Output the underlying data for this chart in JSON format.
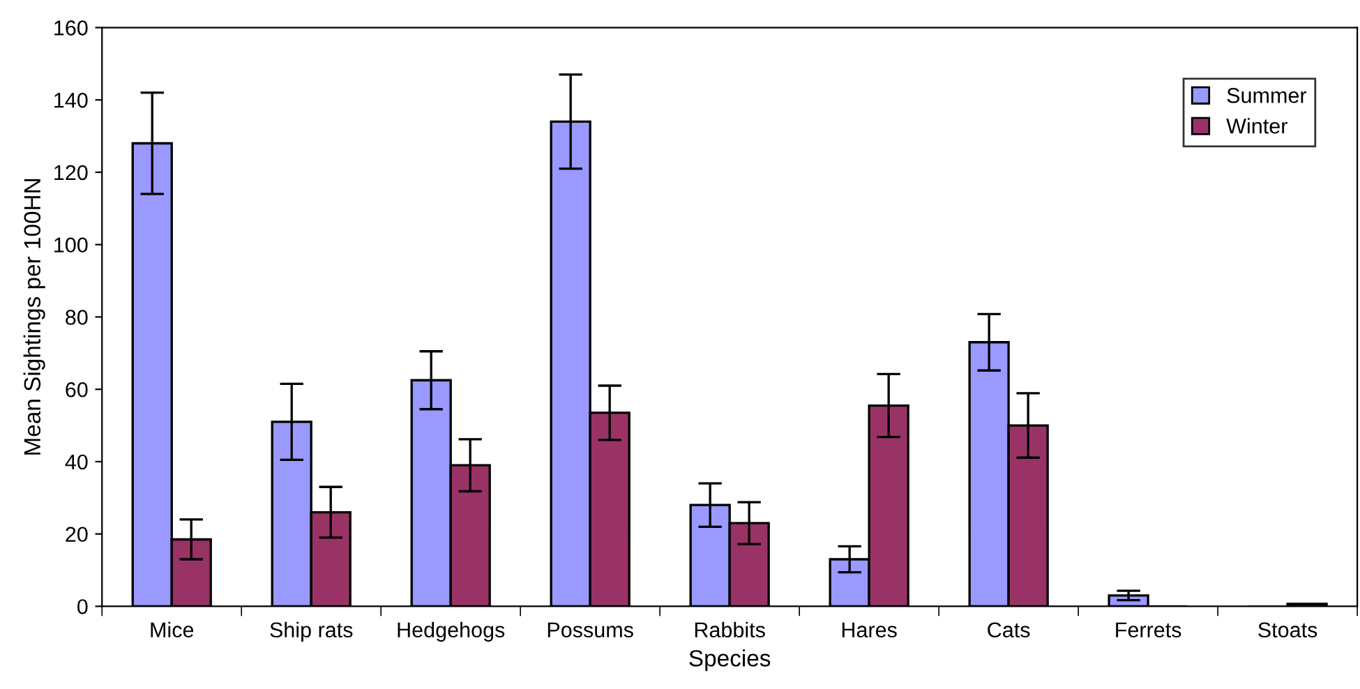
{
  "chart_data": {
    "type": "bar",
    "xlabel": "Species",
    "ylabel": "Mean Sightings per 100HN",
    "categories": [
      "Mice",
      "Ship rats",
      "Hedgehogs",
      "Possums",
      "Rabbits",
      "Hares",
      "Cats",
      "Ferrets",
      "Stoats"
    ],
    "series": [
      {
        "name": "Summer",
        "color": "#9999ff",
        "values": [
          128,
          51,
          62.5,
          134,
          28,
          13,
          73,
          3,
          0
        ],
        "errors": [
          14,
          10.5,
          8,
          13,
          6,
          3.6,
          7.8,
          1.3,
          null
        ]
      },
      {
        "name": "Winter",
        "color": "#993366",
        "values": [
          18.5,
          26,
          39,
          53.5,
          23,
          55.5,
          50,
          0,
          0.7
        ],
        "errors": [
          5.5,
          7,
          7.2,
          7.5,
          5.8,
          8.7,
          8.9,
          null,
          null
        ]
      }
    ],
    "ylim": [
      0,
      160
    ],
    "yticks": [
      0,
      20,
      40,
      60,
      80,
      100,
      120,
      140,
      160
    ],
    "grid": false,
    "legend": "top right"
  }
}
